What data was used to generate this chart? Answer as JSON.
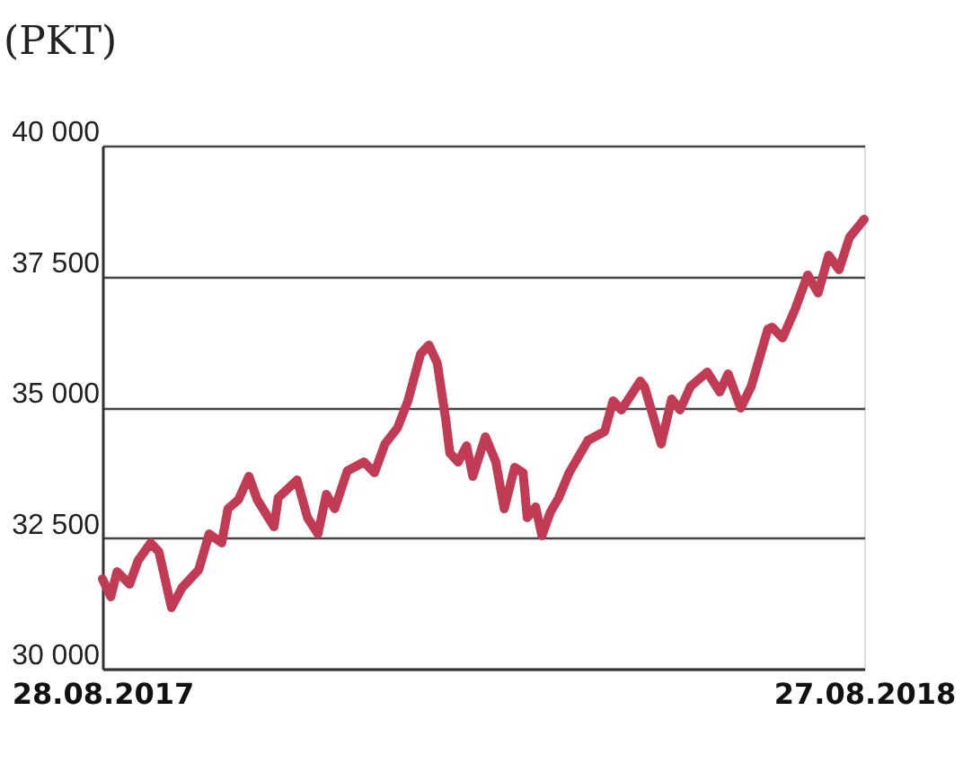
{
  "chart_data": {
    "type": "line",
    "title": "(PKT)",
    "x": [
      "2017-08-28",
      "2017-09-01",
      "2017-09-04",
      "2017-09-10",
      "2017-09-14",
      "2017-09-20",
      "2017-09-24",
      "2017-09-30",
      "2017-10-05",
      "2017-10-13",
      "2017-10-18",
      "2017-10-24",
      "2017-10-27",
      "2017-11-01",
      "2017-11-06",
      "2017-11-10",
      "2017-11-18",
      "2017-11-20",
      "2017-11-29",
      "2017-12-04",
      "2017-12-09",
      "2017-12-13",
      "2017-12-17",
      "2017-12-23",
      "2017-12-31",
      "2018-01-05",
      "2018-01-10",
      "2018-01-16",
      "2018-01-21",
      "2018-01-27",
      "2018-01-31",
      "2018-02-04",
      "2018-02-08",
      "2018-02-10",
      "2018-02-14",
      "2018-02-18",
      "2018-02-21",
      "2018-02-27",
      "2018-03-04",
      "2018-03-08",
      "2018-03-13",
      "2018-03-17",
      "2018-03-19",
      "2018-03-23",
      "2018-03-26",
      "2018-03-30",
      "2018-04-03",
      "2018-04-08",
      "2018-04-17",
      "2018-04-25",
      "2018-04-29",
      "2018-05-03",
      "2018-05-12",
      "2018-05-14",
      "2018-05-22",
      "2018-05-27",
      "2018-05-31",
      "2018-06-05",
      "2018-06-13",
      "2018-06-19",
      "2018-06-23",
      "2018-06-29",
      "2018-07-04",
      "2018-07-12",
      "2018-07-14",
      "2018-07-19",
      "2018-07-25",
      "2018-07-31",
      "2018-08-05",
      "2018-08-10",
      "2018-08-15",
      "2018-08-20",
      "2018-08-27"
    ],
    "series": [
      {
        "color": "#c23b55",
        "values": [
          31718,
          31375,
          31856,
          31615,
          32062,
          32405,
          32234,
          31168,
          31546,
          31890,
          32577,
          32405,
          33058,
          33230,
          33677,
          33230,
          32715,
          33265,
          33608,
          32887,
          32577,
          33333,
          33058,
          33780,
          33952,
          33746,
          34296,
          34605,
          35120,
          36014,
          36186,
          35842,
          34777,
          34124,
          33952,
          34261,
          33677,
          34433,
          33952,
          33058,
          33849,
          33746,
          32887,
          33093,
          32543,
          32990,
          33265,
          33746,
          34364,
          34536,
          35120,
          34948,
          35498,
          35395,
          34296,
          35155,
          34948,
          35395,
          35670,
          35292,
          35636,
          34983,
          35395,
          36495,
          36529,
          36323,
          36873,
          37526,
          37182,
          37904,
          37629,
          38247,
          38591
        ]
      }
    ],
    "xlim": [
      "2017-08-28",
      "2018-08-27"
    ],
    "xticks": [
      {
        "value": "2017-08-28",
        "label": "28.08.2017"
      },
      {
        "value": "2018-08-27",
        "label": "27.08.2018"
      }
    ],
    "ylim": [
      30000,
      40000
    ],
    "yticks": [
      {
        "value": 30000,
        "label": "30 000"
      },
      {
        "value": 32500,
        "label": "32 500"
      },
      {
        "value": 35000,
        "label": "35 000"
      },
      {
        "value": 37500,
        "label": "37 500"
      },
      {
        "value": 40000,
        "label": "40 000"
      }
    ],
    "grid": "y",
    "line_style": "solid",
    "marker": "none"
  }
}
